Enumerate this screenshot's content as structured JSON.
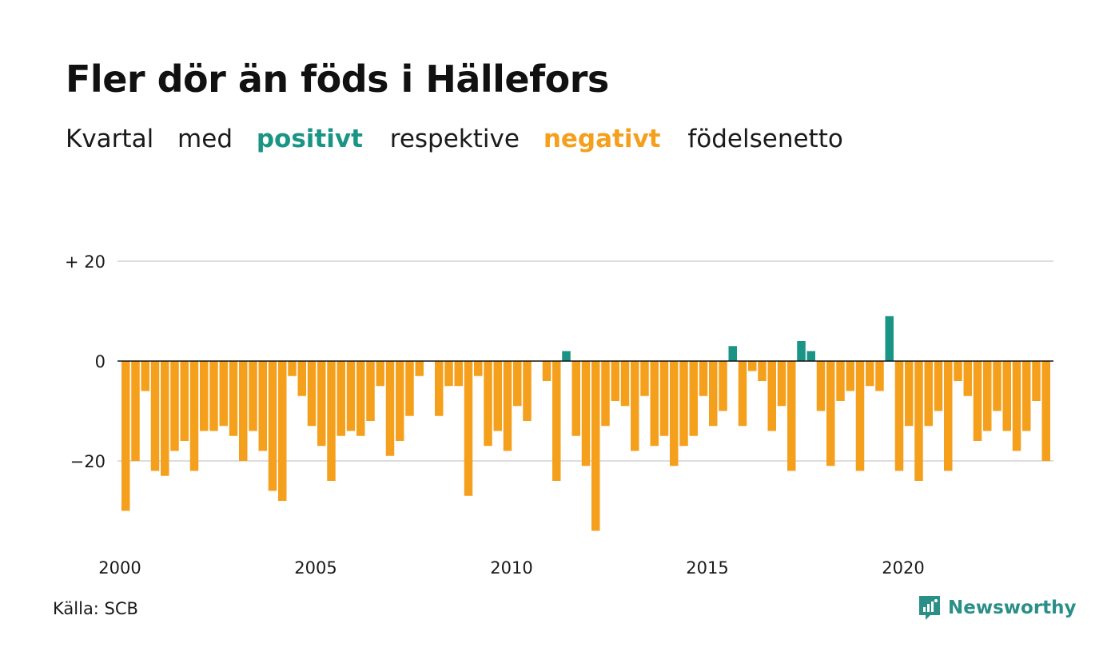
{
  "title": "Fler dör än föds i Hällefors",
  "subtitle": {
    "part1": "Kvartal",
    "part2": "med",
    "positive": "positivt",
    "part3": "respektive",
    "negative": "negativt",
    "part4": "födelsenetto"
  },
  "source": "Källa: SCB",
  "brand": "Newsworthy",
  "colors": {
    "positive": "#1a9484",
    "negative": "#f5a01d",
    "grid": "#dddddd"
  },
  "chart_data": {
    "type": "bar",
    "xlabel": "",
    "ylabel": "",
    "ylim": [
      -36,
      20
    ],
    "y_ticks": [
      {
        "value": 20,
        "label": "+ 20"
      },
      {
        "value": 0,
        "label": "0"
      },
      {
        "value": -20,
        "label": "−20"
      }
    ],
    "x_ticks": [
      {
        "year": 2000,
        "label": "2000"
      },
      {
        "year": 2005,
        "label": "2005"
      },
      {
        "year": 2010,
        "label": "2010"
      },
      {
        "year": 2015,
        "label": "2015"
      },
      {
        "year": 2020,
        "label": "2020"
      }
    ],
    "start": {
      "year": 2000,
      "quarter": 1
    },
    "values": [
      -30,
      -20,
      -6,
      -22,
      -23,
      -18,
      -16,
      -22,
      -14,
      -14,
      -13,
      -15,
      -20,
      -14,
      -18,
      -26,
      -28,
      -3,
      -7,
      -13,
      -17,
      -24,
      -15,
      -14,
      -15,
      -12,
      -5,
      -19,
      -16,
      -11,
      -3,
      0,
      -11,
      -5,
      -5,
      -27,
      -3,
      -17,
      -14,
      -18,
      -9,
      -12,
      0,
      -4,
      -24,
      2,
      -15,
      -21,
      -34,
      -13,
      -8,
      -9,
      -18,
      -7,
      -17,
      -15,
      -21,
      -17,
      -15,
      -7,
      -13,
      -10,
      3,
      -13,
      -2,
      -4,
      -14,
      -9,
      -22,
      4,
      2,
      -10,
      -21,
      -8,
      -6,
      -22,
      -5,
      -6,
      9,
      -22,
      -13,
      -24,
      -13,
      -10,
      -22,
      -4,
      -7,
      -16,
      -14,
      -10,
      -14,
      -18,
      -14,
      -8,
      -20
    ]
  }
}
